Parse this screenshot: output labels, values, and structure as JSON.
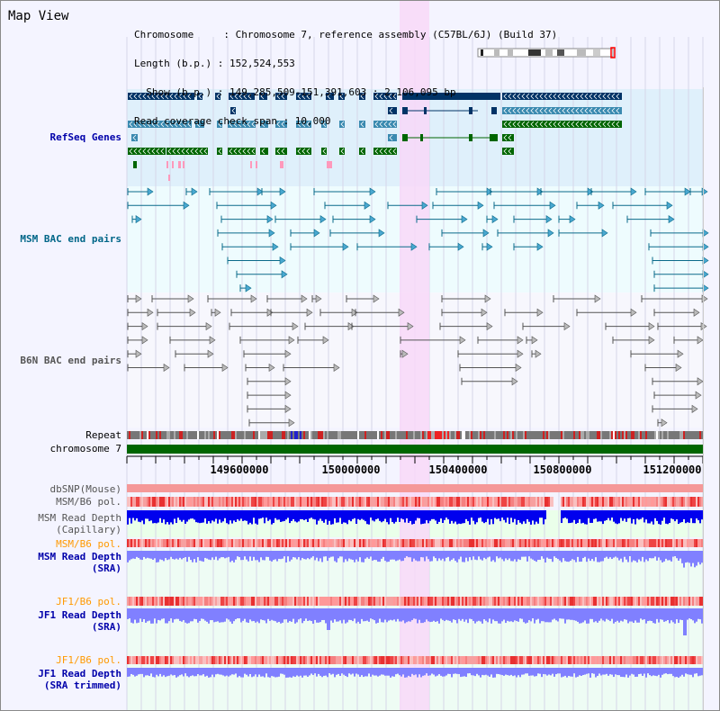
{
  "header": {
    "title": "Map View",
    "info_lines": [
      "Chromosome     : Chromosome 7, reference assembly (C57BL/6J) (Build 37)",
      "Length (b.p.) : 152,524,553",
      "  Show (b.p.) : 149,285,509-151,391,603 : 2,106,095 bp",
      "Read coverage check span : 10,000"
    ]
  },
  "tracks": {
    "refseq": {
      "label": "RefSeq Genes",
      "color": "#0000aa"
    },
    "msm_bac": {
      "label": "MSM BAC end pairs",
      "color": "#006688"
    },
    "b6n_bac": {
      "label": "B6N BAC end pairs",
      "color": "#555555"
    },
    "repeat": {
      "label": "Repeat"
    },
    "chromosome": {
      "label": "chromosome 7"
    },
    "dbsnp": {
      "label": "dbSNP(Mouse)"
    },
    "msm_b6_pol": {
      "label": "MSM/B6 pol."
    },
    "msm_depth_cap": {
      "label": "MSM Read Depth\n(Capillary)"
    },
    "msm_b6_pol2": {
      "label": "MSM/B6 pol."
    },
    "msm_depth_sra": {
      "label": "MSM Read Depth\n(SRA)"
    },
    "jf1_b6_pol": {
      "label": "JF1/B6 pol."
    },
    "jf1_depth_sra": {
      "label": "JF1 Read Depth\n(SRA)"
    },
    "jf1_b6_pol2": {
      "label": "JF1/B6 pol."
    },
    "jf1_depth_trim": {
      "label": "JF1 Read Depth\n(SRA trimmed)"
    }
  },
  "ruler": {
    "ticks": [
      "149600000",
      "150000000",
      "150400000",
      "150800000",
      "151200000"
    ]
  },
  "colors": {
    "refseq_bg": "#dff0fb",
    "bac_bg": "#eefcfe",
    "highlight": "#f8d8f8",
    "chromosome_bar": "#006600",
    "gene_dark": "#003366",
    "gene_mid": "#3a8ab0",
    "gene_green": "#006600",
    "gene_pink": "#ff99bb",
    "depth_blue": "#0000ee",
    "depth_lavender": "#8080ff",
    "pol_red": "#ee4444",
    "pol_orange_label": "#ff9900"
  }
}
